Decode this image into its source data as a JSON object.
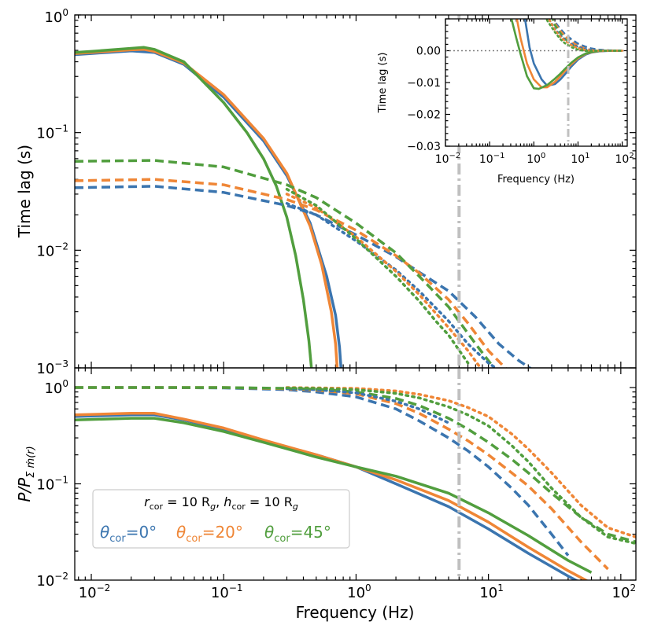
{
  "colors": {
    "theta0": "#3b75af",
    "theta20": "#ef8636",
    "theta45": "#519e3e",
    "marker": "#c0c0c0",
    "zero_line": "#808080"
  },
  "axis_labels": {
    "top_ylabel": "Time lag (s)",
    "bottom_ylabel_main": "P/P",
    "bottom_ylabel_sub": "Σ ṁ(r)",
    "xlabel": "Frequency (Hz)",
    "inset_ylabel": "Time lag (s)",
    "inset_xlabel": "Frequency (Hz)"
  },
  "legend": {
    "line1_r": "r",
    "line1_r_sub": "cor",
    "line1_r_val": " = 10 R",
    "line1_r_unit_sub": "g",
    "line1_sep": ", ",
    "line1_h": "h",
    "line1_h_sub": "cor",
    "line1_h_val": " = 10 R",
    "line1_h_unit_sub": "g",
    "entries": [
      {
        "sym": "θ",
        "sub": "cor",
        "val": "=0°"
      },
      {
        "sym": "θ",
        "sub": "cor",
        "val": "=20°"
      },
      {
        "sym": "θ",
        "sub": "cor",
        "val": "=45°"
      }
    ]
  },
  "tick_labels": {
    "x": [
      {
        "base": "10",
        "exp": "−2"
      },
      {
        "base": "10",
        "exp": "−1"
      },
      {
        "base": "10",
        "exp": "0"
      },
      {
        "base": "10",
        "exp": "1"
      },
      {
        "base": "10",
        "exp": "2"
      }
    ],
    "top_y": [
      {
        "base": "10",
        "exp": "0"
      },
      {
        "base": "10",
        "exp": "−1"
      },
      {
        "base": "10",
        "exp": "−2"
      },
      {
        "base": "10",
        "exp": "−3"
      }
    ],
    "bottom_y": [
      {
        "base": "10",
        "exp": "0"
      },
      {
        "base": "10",
        "exp": "−1"
      },
      {
        "base": "10",
        "exp": "−2"
      }
    ],
    "inset_x": [
      {
        "base": "10",
        "exp": "−2"
      },
      {
        "base": "10",
        "exp": "−1"
      },
      {
        "base": "10",
        "exp": "0"
      },
      {
        "base": "10",
        "exp": "1"
      },
      {
        "base": "10",
        "exp": "2"
      }
    ],
    "inset_y": [
      "0.00",
      "−0.01",
      "−0.02",
      "−0.03"
    ]
  },
  "chart_data": [
    {
      "id": "top",
      "type": "line",
      "xscale": "log",
      "yscale": "log",
      "xlim": [
        0.0075,
        130
      ],
      "ylim": [
        0.001,
        1
      ],
      "xlabel": "",
      "ylabel": "Time lag (s)",
      "vline_x": 6,
      "series": [
        {
          "name": "θcor=0° total",
          "color": "theta0",
          "style": "solid",
          "x": [
            0.0075,
            0.01,
            0.02,
            0.03,
            0.05,
            0.1,
            0.2,
            0.3,
            0.45,
            0.6,
            0.7,
            0.75,
            0.77
          ],
          "y": [
            0.46,
            0.47,
            0.495,
            0.48,
            0.38,
            0.2,
            0.085,
            0.043,
            0.017,
            0.006,
            0.0028,
            0.0015,
            0.001
          ]
        },
        {
          "name": "θcor=20° total",
          "color": "theta20",
          "style": "solid",
          "x": [
            0.0075,
            0.01,
            0.02,
            0.025,
            0.03,
            0.05,
            0.1,
            0.2,
            0.3,
            0.45,
            0.55,
            0.65,
            0.7,
            0.72
          ],
          "y": [
            0.47,
            0.48,
            0.505,
            0.51,
            0.49,
            0.39,
            0.21,
            0.089,
            0.045,
            0.016,
            0.0075,
            0.003,
            0.0016,
            0.001
          ]
        },
        {
          "name": "θcor=45° total",
          "color": "theta45",
          "style": "solid",
          "x": [
            0.0075,
            0.01,
            0.02,
            0.025,
            0.03,
            0.05,
            0.1,
            0.15,
            0.2,
            0.25,
            0.3,
            0.35,
            0.4,
            0.44,
            0.46
          ],
          "y": [
            0.48,
            0.49,
            0.52,
            0.53,
            0.51,
            0.4,
            0.18,
            0.1,
            0.06,
            0.035,
            0.019,
            0.009,
            0.0038,
            0.0017,
            0.001
          ]
        },
        {
          "name": "θcor=0° dashed",
          "color": "theta0",
          "style": "dashed",
          "x": [
            0.0075,
            0.03,
            0.1,
            0.3,
            0.5,
            1,
            2,
            3,
            5,
            8,
            12,
            17,
            22
          ],
          "y": [
            0.034,
            0.035,
            0.031,
            0.024,
            0.02,
            0.0135,
            0.0088,
            0.0065,
            0.0045,
            0.0027,
            0.0016,
            0.00115,
            0.00095
          ]
        },
        {
          "name": "θcor=20° dashed",
          "color": "theta20",
          "style": "dashed",
          "x": [
            0.0075,
            0.03,
            0.1,
            0.3,
            0.5,
            1,
            2,
            3,
            5,
            7,
            10,
            14
          ],
          "y": [
            0.039,
            0.04,
            0.036,
            0.027,
            0.022,
            0.0148,
            0.009,
            0.0064,
            0.0038,
            0.0024,
            0.0014,
            0.00095
          ]
        },
        {
          "name": "θcor=45° dashed",
          "color": "theta45",
          "style": "dashed",
          "x": [
            0.0075,
            0.03,
            0.1,
            0.3,
            0.5,
            1,
            2,
            3,
            5,
            8,
            11
          ],
          "y": [
            0.057,
            0.058,
            0.051,
            0.036,
            0.028,
            0.017,
            0.0095,
            0.006,
            0.0033,
            0.0016,
            0.001
          ]
        },
        {
          "name": "θcor=0° dotted",
          "color": "theta0",
          "style": "dotted",
          "x": [
            0.3,
            0.5,
            1,
            2,
            3,
            5,
            7,
            10,
            13
          ],
          "y": [
            0.025,
            0.02,
            0.012,
            0.0068,
            0.0045,
            0.0025,
            0.0016,
            0.0011,
            0.0009
          ]
        },
        {
          "name": "θcor=20° dotted",
          "color": "theta20",
          "style": "dotted",
          "x": [
            0.3,
            0.5,
            1,
            2,
            3,
            5,
            7,
            9
          ],
          "y": [
            0.03,
            0.023,
            0.013,
            0.0066,
            0.0042,
            0.0022,
            0.0014,
            0.00095
          ]
        },
        {
          "name": "θcor=45° dotted",
          "color": "theta45",
          "style": "dotted",
          "x": [
            0.3,
            0.5,
            1,
            2,
            3,
            4,
            5,
            7
          ],
          "y": [
            0.033,
            0.024,
            0.0125,
            0.006,
            0.0037,
            0.0025,
            0.0019,
            0.0011
          ]
        }
      ]
    },
    {
      "id": "bottom",
      "type": "line",
      "xscale": "log",
      "yscale": "log",
      "xlim": [
        0.0075,
        130
      ],
      "ylim": [
        0.01,
        1.6
      ],
      "xlabel": "Frequency (Hz)",
      "ylabel": "P/PΣ ṁ(r)",
      "vline_x": 6,
      "series": [
        {
          "name": "θcor=0° total",
          "color": "theta0",
          "style": "solid",
          "x": [
            0.0075,
            0.02,
            0.03,
            0.05,
            0.1,
            0.2,
            0.5,
            1,
            2,
            5,
            10,
            20,
            40,
            60
          ],
          "y": [
            0.5,
            0.52,
            0.52,
            0.46,
            0.37,
            0.28,
            0.2,
            0.15,
            0.1,
            0.058,
            0.034,
            0.019,
            0.011,
            0.0082
          ]
        },
        {
          "name": "θcor=20° total",
          "color": "theta20",
          "style": "solid",
          "x": [
            0.0075,
            0.02,
            0.03,
            0.05,
            0.1,
            0.2,
            0.5,
            1,
            2,
            5,
            10,
            20,
            40,
            60
          ],
          "y": [
            0.52,
            0.54,
            0.54,
            0.47,
            0.38,
            0.285,
            0.2,
            0.15,
            0.11,
            0.067,
            0.04,
            0.022,
            0.0125,
            0.0093
          ]
        },
        {
          "name": "θcor=45° total",
          "color": "theta45",
          "style": "solid",
          "x": [
            0.0075,
            0.02,
            0.03,
            0.05,
            0.1,
            0.2,
            0.5,
            1,
            2,
            5,
            10,
            20,
            40,
            60
          ],
          "y": [
            0.46,
            0.48,
            0.48,
            0.43,
            0.35,
            0.27,
            0.19,
            0.15,
            0.12,
            0.08,
            0.05,
            0.029,
            0.016,
            0.012
          ]
        },
        {
          "name": "θcor=0° dashed",
          "color": "theta0",
          "style": "dashed",
          "x": [
            0.0075,
            0.03,
            0.1,
            0.3,
            0.5,
            1,
            2,
            3,
            5,
            7,
            10,
            15,
            20,
            30,
            40
          ],
          "y": [
            1,
            1,
            0.99,
            0.95,
            0.9,
            0.8,
            0.6,
            0.45,
            0.3,
            0.22,
            0.15,
            0.09,
            0.06,
            0.03,
            0.018
          ]
        },
        {
          "name": "θcor=20° dashed",
          "color": "theta20",
          "style": "dashed",
          "x": [
            0.0075,
            0.03,
            0.1,
            0.3,
            0.5,
            1,
            2,
            3,
            5,
            7,
            10,
            15,
            20,
            30,
            50,
            80
          ],
          "y": [
            1,
            1,
            1,
            0.97,
            0.94,
            0.86,
            0.68,
            0.54,
            0.37,
            0.28,
            0.2,
            0.13,
            0.095,
            0.055,
            0.025,
            0.013
          ]
        },
        {
          "name": "θcor=45° dashed",
          "color": "theta45",
          "style": "dashed",
          "x": [
            0.0075,
            0.03,
            0.1,
            0.3,
            0.5,
            1,
            2,
            3,
            5,
            7,
            10,
            15,
            20,
            30,
            50,
            80,
            130
          ],
          "y": [
            1,
            1,
            1,
            0.98,
            0.96,
            0.9,
            0.77,
            0.65,
            0.48,
            0.37,
            0.27,
            0.18,
            0.13,
            0.08,
            0.045,
            0.03,
            0.025
          ]
        },
        {
          "name": "θcor=0° dotted",
          "color": "theta0",
          "style": "dotted",
          "x": [
            0.3,
            0.5,
            1,
            2,
            3,
            5
          ],
          "y": [
            0.97,
            0.95,
            0.88,
            0.72,
            0.6,
            0.43
          ]
        },
        {
          "name": "θcor=20° dotted",
          "color": "theta20",
          "style": "dotted",
          "x": [
            0.3,
            0.5,
            1,
            2,
            3,
            5,
            7,
            10,
            15,
            20,
            30,
            50,
            80,
            130
          ],
          "y": [
            1,
            0.99,
            0.98,
            0.92,
            0.85,
            0.73,
            0.62,
            0.5,
            0.33,
            0.23,
            0.13,
            0.06,
            0.035,
            0.028
          ]
        },
        {
          "name": "θcor=45° dotted",
          "color": "theta45",
          "style": "dotted",
          "x": [
            0.3,
            0.5,
            1,
            2,
            3,
            5,
            7,
            10,
            15,
            20,
            30,
            50,
            80,
            130
          ],
          "y": [
            0.99,
            0.98,
            0.95,
            0.87,
            0.78,
            0.63,
            0.52,
            0.4,
            0.25,
            0.17,
            0.09,
            0.045,
            0.028,
            0.024
          ]
        }
      ]
    },
    {
      "id": "inset",
      "type": "line",
      "xscale": "log",
      "yscale": "linear",
      "xlim": [
        0.01,
        130
      ],
      "ylim": [
        -0.03,
        0.01
      ],
      "xlabel": "Frequency (Hz)",
      "ylabel": "Time lag (s)",
      "hline_y": 0,
      "vline_x": 6,
      "series": [
        {
          "name": "θcor=0° total",
          "color": "theta0",
          "style": "solid",
          "x": [
            0.6,
            0.8,
            1,
            1.5,
            2,
            3,
            4,
            5,
            7,
            10,
            15,
            20,
            30,
            50,
            100
          ],
          "y": [
            0.012,
            0.001,
            -0.004,
            -0.009,
            -0.011,
            -0.0105,
            -0.009,
            -0.0075,
            -0.005,
            -0.0028,
            -0.0012,
            -0.0006,
            -0.0002,
            -5e-05,
            0
          ]
        },
        {
          "name": "θcor=20° total",
          "color": "theta20",
          "style": "solid",
          "x": [
            0.4,
            0.5,
            0.7,
            1,
            1.5,
            2,
            3,
            4,
            5,
            7,
            10,
            15,
            20,
            30,
            50,
            100
          ],
          "y": [
            0.011,
            0.004,
            -0.004,
            -0.009,
            -0.0115,
            -0.0115,
            -0.0098,
            -0.008,
            -0.0065,
            -0.0043,
            -0.0024,
            -0.001,
            -0.0005,
            -0.00015,
            0,
            0
          ]
        },
        {
          "name": "θcor=45° total",
          "color": "theta45",
          "style": "solid",
          "x": [
            0.3,
            0.4,
            0.5,
            0.7,
            1,
            1.3,
            2,
            3,
            4,
            5,
            7,
            10,
            15,
            20,
            30,
            50,
            100
          ],
          "y": [
            0.011,
            0.004,
            -0.001,
            -0.008,
            -0.0118,
            -0.012,
            -0.0108,
            -0.0088,
            -0.0072,
            -0.0058,
            -0.0038,
            -0.0021,
            -0.0009,
            -0.0004,
            -0.0001,
            0,
            0
          ]
        },
        {
          "name": "θcor=0° dashed",
          "color": "theta0",
          "style": "dashed",
          "x": [
            2.5,
            3,
            4,
            5,
            7,
            10,
            15,
            20,
            30,
            50,
            100
          ],
          "y": [
            0.011,
            0.009,
            0.0068,
            0.0053,
            0.0036,
            0.0022,
            0.0012,
            0.0007,
            0.0003,
            0.0001,
            0
          ]
        },
        {
          "name": "θcor=20° dashed",
          "color": "theta20",
          "style": "dashed",
          "x": [
            2.5,
            3,
            4,
            5,
            7,
            10,
            15,
            20,
            30,
            50,
            100
          ],
          "y": [
            0.011,
            0.0085,
            0.0062,
            0.0046,
            0.0028,
            0.0015,
            0.0006,
            0.0002,
            0,
            0,
            0
          ]
        },
        {
          "name": "θcor=45° dashed",
          "color": "theta45",
          "style": "dashed",
          "x": [
            2.5,
            3,
            4,
            5,
            7,
            10,
            15,
            20,
            30,
            50,
            100
          ],
          "y": [
            0.011,
            0.008,
            0.0055,
            0.0038,
            0.002,
            0.0008,
            0.0001,
            -0.0001,
            0,
            0,
            0
          ]
        },
        {
          "name": "θcor=0° dotted",
          "color": "theta0",
          "style": "dotted",
          "x": [
            2,
            3,
            4,
            5,
            7,
            10,
            15,
            20,
            30,
            50,
            100
          ],
          "y": [
            0.011,
            0.0068,
            0.0048,
            0.0036,
            0.0022,
            0.0012,
            0.0005,
            0.0002,
            0,
            0,
            0
          ]
        },
        {
          "name": "θcor=20° dotted",
          "color": "theta20",
          "style": "dotted",
          "x": [
            2,
            3,
            4,
            5,
            7,
            10,
            15,
            20,
            30,
            50,
            100
          ],
          "y": [
            0.011,
            0.0065,
            0.0044,
            0.0032,
            0.0018,
            0.0008,
            0.0002,
            0,
            0,
            0,
            0
          ]
        },
        {
          "name": "θcor=45° dotted",
          "color": "theta45",
          "style": "dotted",
          "x": [
            1.8,
            2,
            3,
            4,
            5,
            7,
            10,
            15,
            20,
            30,
            50,
            100
          ],
          "y": [
            0.011,
            0.0095,
            0.0058,
            0.0036,
            0.0024,
            0.0011,
            0.0003,
            -0.0001,
            -0.0001,
            0,
            0,
            0
          ]
        }
      ]
    }
  ]
}
